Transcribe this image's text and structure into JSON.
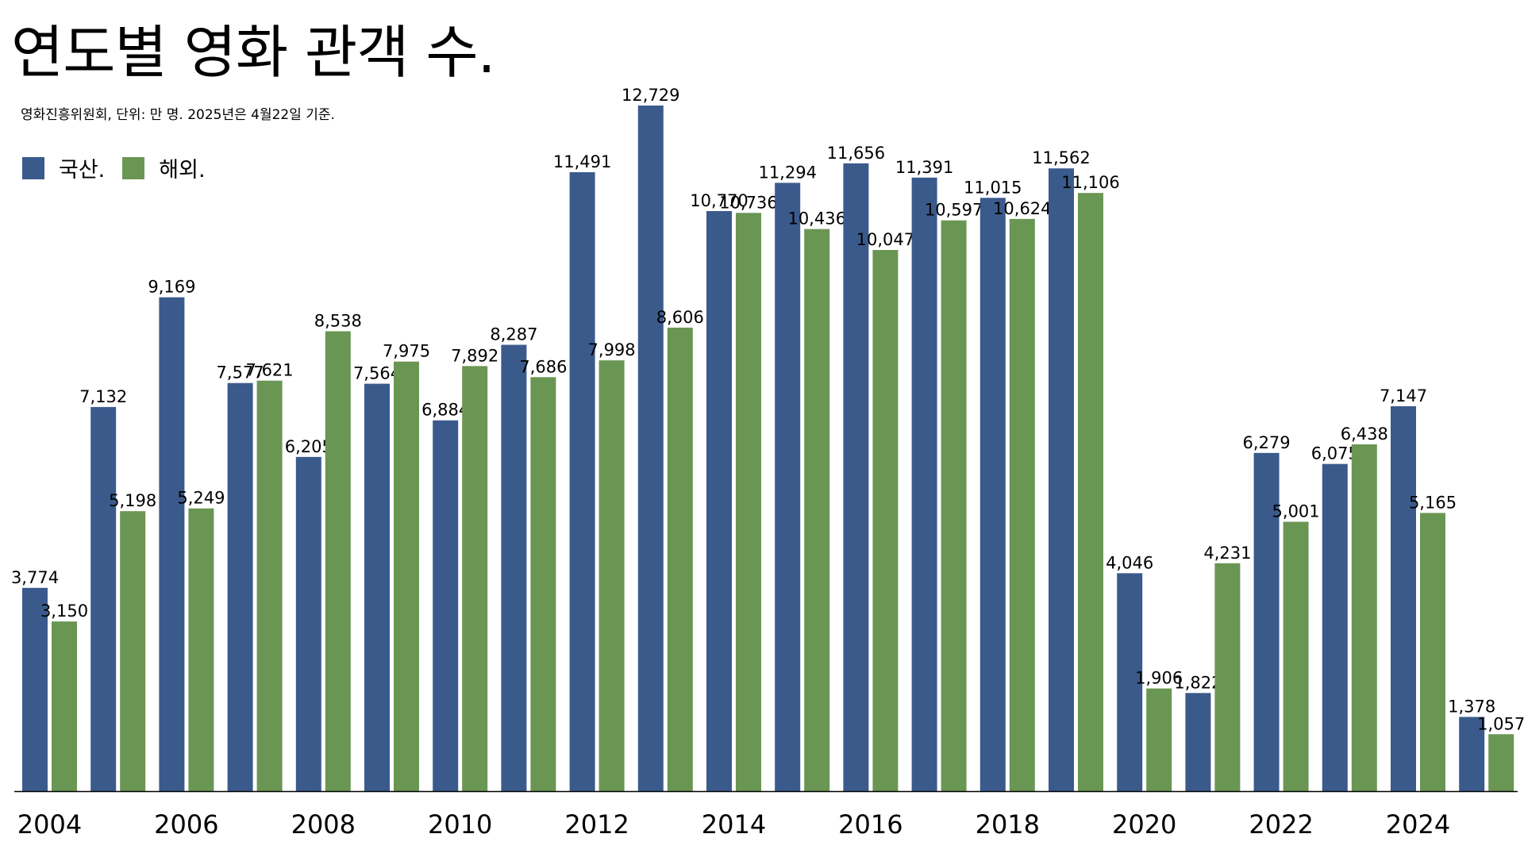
{
  "title": "연도별 영화 관객 수.",
  "subtitle": "영화진흥위원회, 단위: 만 명. 2025년은 4월22일 기준.",
  "colors": {
    "domestic": "#3b5a8c",
    "foreign": "#6a9654",
    "axis": "#000000"
  },
  "chart_data": {
    "type": "bar",
    "categories": [
      "2004",
      "2005",
      "2006",
      "2007",
      "2008",
      "2009",
      "2010",
      "2011",
      "2012",
      "2013",
      "2014",
      "2015",
      "2016",
      "2017",
      "2018",
      "2019",
      "2020",
      "2021",
      "2022",
      "2023",
      "2024",
      "2025"
    ],
    "x_tick_labels": [
      "2004",
      "2006",
      "2008",
      "2010",
      "2012",
      "2014",
      "2016",
      "2018",
      "2020",
      "2022",
      "2024"
    ],
    "series": [
      {
        "name": "국산.",
        "color": "#3b5a8c",
        "values": [
          3774,
          7132,
          9169,
          7577,
          6205,
          7564,
          6884,
          8287,
          11491,
          12729,
          10770,
          11294,
          11656,
          11391,
          11015,
          11562,
          4046,
          1822,
          6279,
          6075,
          7147,
          1378
        ]
      },
      {
        "name": "해외.",
        "color": "#6a9654",
        "values": [
          3150,
          5198,
          5249,
          7621,
          8538,
          7975,
          7892,
          7686,
          7998,
          8606,
          10736,
          10436,
          10047,
          10597,
          10624,
          11106,
          1906,
          4231,
          5001,
          6438,
          5165,
          1057
        ]
      }
    ],
    "ylim": [
      0,
      13300
    ],
    "grid": false,
    "legend_position": "top-left",
    "xlabel": "",
    "ylabel": ""
  }
}
